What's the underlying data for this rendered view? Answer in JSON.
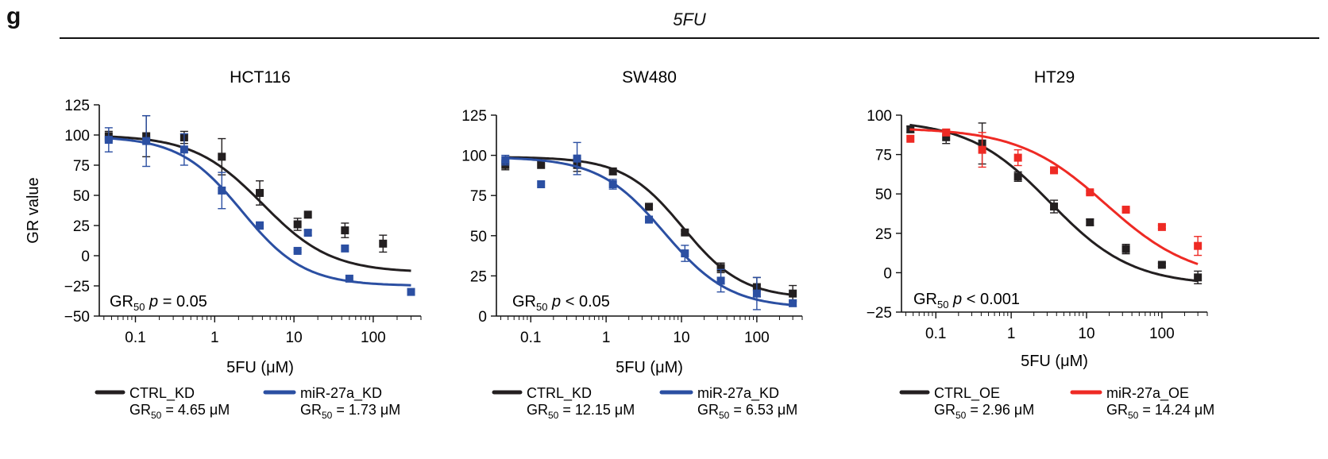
{
  "panel_label": "g",
  "header": "5FU",
  "colors": {
    "black": "#231f20",
    "blue": "#2b4fa2",
    "red": "#ee2a24"
  },
  "chart_data": [
    {
      "type": "scatter",
      "title": "HCT116",
      "xlabel": "5FU (μM)",
      "ylabel": "GR value",
      "xscale": "log",
      "xlim": [
        0.035,
        400
      ],
      "xticks": [
        0.1,
        1,
        10,
        100
      ],
      "xtick_labels": [
        "0.1",
        "1",
        "10",
        "100"
      ],
      "ylim": [
        -50,
        125
      ],
      "yticks": [
        -50,
        -25,
        0,
        25,
        50,
        75,
        100,
        125
      ],
      "annotation": {
        "prefix": "GR",
        "sub": "50",
        "stat": "p",
        "text": " = 0.05"
      },
      "legend_position": "bottom",
      "series": [
        {
          "name": "CTRL_KD",
          "color": "#231f20",
          "gr50_label": "= 4.65 μM",
          "curve": {
            "top": 100,
            "bottom": -14,
            "ec50": 4.0,
            "hill": 1.0
          },
          "x": [
            0.046,
            0.137,
            0.412,
            1.23,
            3.7,
            11.1,
            15.0,
            44.0,
            133,
            300
          ],
          "y": [
            99,
            99,
            98,
            82,
            52,
            26,
            34,
            21,
            10,
            null
          ],
          "err": [
            4,
            17,
            5,
            15,
            10,
            5,
            0,
            6,
            7,
            0
          ]
        },
        {
          "name": "miR-27a_KD",
          "color": "#2b4fa2",
          "gr50_label": "= 1.73 μM",
          "curve": {
            "top": 99,
            "bottom": -25,
            "ec50": 2.2,
            "hill": 1.1
          },
          "x": [
            0.046,
            0.137,
            0.412,
            1.23,
            3.7,
            11.1,
            15.0,
            44.0,
            50.0,
            300
          ],
          "y": [
            96,
            95,
            88,
            54,
            25,
            4,
            19,
            6,
            -19,
            -30
          ],
          "err": [
            10,
            21,
            13,
            15,
            3,
            1,
            2,
            0,
            0,
            0
          ]
        }
      ]
    },
    {
      "type": "scatter",
      "title": "SW480",
      "xlabel": "5FU (μM)",
      "ylabel": "",
      "xscale": "log",
      "xlim": [
        0.035,
        400
      ],
      "xticks": [
        0.1,
        1,
        10,
        100
      ],
      "xtick_labels": [
        "0.1",
        "1",
        "10",
        "100"
      ],
      "ylim": [
        0,
        125
      ],
      "yticks": [
        0,
        25,
        50,
        75,
        100,
        125
      ],
      "annotation": {
        "prefix": "GR",
        "sub": "50",
        "stat": "p",
        "text": " < 0.05"
      },
      "legend_position": "bottom",
      "series": [
        {
          "name": "CTRL_KD",
          "color": "#231f20",
          "gr50_label": "= 12.15 μM",
          "curve": {
            "top": 99,
            "bottom": 11,
            "ec50": 10.5,
            "hill": 1.1
          },
          "x": [
            0.046,
            0.137,
            0.412,
            1.23,
            3.7,
            11.1,
            33.3,
            100,
            300
          ],
          "y": [
            94,
            94,
            94,
            90,
            68,
            52,
            30,
            18,
            14
          ],
          "err": [
            3,
            0,
            4,
            2,
            1,
            1,
            3,
            6,
            5
          ]
        },
        {
          "name": "miR-27a_KD",
          "color": "#2b4fa2",
          "gr50_label": "= 6.53 μM",
          "curve": {
            "top": 99,
            "bottom": 5,
            "ec50": 5.9,
            "hill": 1.0
          },
          "x": [
            0.046,
            0.137,
            0.412,
            1.23,
            3.7,
            11.1,
            33.3,
            100,
            300
          ],
          "y": [
            97,
            82,
            98,
            82,
            60,
            39,
            22,
            14,
            8
          ],
          "err": [
            3,
            0,
            10,
            3,
            2,
            5,
            7,
            10,
            2
          ]
        }
      ]
    },
    {
      "type": "scatter",
      "title": "HT29",
      "xlabel": "5FU (μM)",
      "ylabel": "",
      "xscale": "log",
      "xlim": [
        0.035,
        400
      ],
      "xticks": [
        0.1,
        1,
        10,
        100
      ],
      "xtick_labels": [
        "0.1",
        "1",
        "10",
        "100"
      ],
      "ylim": [
        -25,
        100
      ],
      "yticks": [
        -25,
        0,
        25,
        50,
        75,
        100
      ],
      "annotation": {
        "prefix": "GR",
        "sub": "50",
        "stat": "p",
        "text": " < 0.001"
      },
      "legend_position": "bottom",
      "series": [
        {
          "name": "CTRL_OE",
          "color": "#231f20",
          "gr50_label": "= 2.96 μM",
          "curve": {
            "top": 97,
            "bottom": -8,
            "ec50": 3.3,
            "hill": 0.8
          },
          "x": [
            0.046,
            0.137,
            0.412,
            1.23,
            3.7,
            11.1,
            33.3,
            100,
            300
          ],
          "y": [
            91,
            86,
            82,
            61,
            42,
            32,
            15,
            5,
            -3
          ],
          "err": [
            2,
            4,
            13,
            3,
            4,
            2,
            3,
            1,
            4
          ]
        },
        {
          "name": "miR-27a_OE",
          "color": "#ee2a24",
          "gr50_label": "= 14.24 μM",
          "curve": {
            "top": 92,
            "bottom": -5,
            "ec50": 18,
            "hill": 0.75
          },
          "x": [
            0.046,
            0.137,
            0.412,
            1.23,
            3.7,
            11.1,
            33.3,
            100,
            300
          ],
          "y": [
            85,
            89,
            78,
            73,
            65,
            51,
            40,
            29,
            17
          ],
          "err": [
            0,
            2,
            11,
            5,
            1,
            1,
            1,
            1,
            6
          ]
        }
      ]
    }
  ]
}
